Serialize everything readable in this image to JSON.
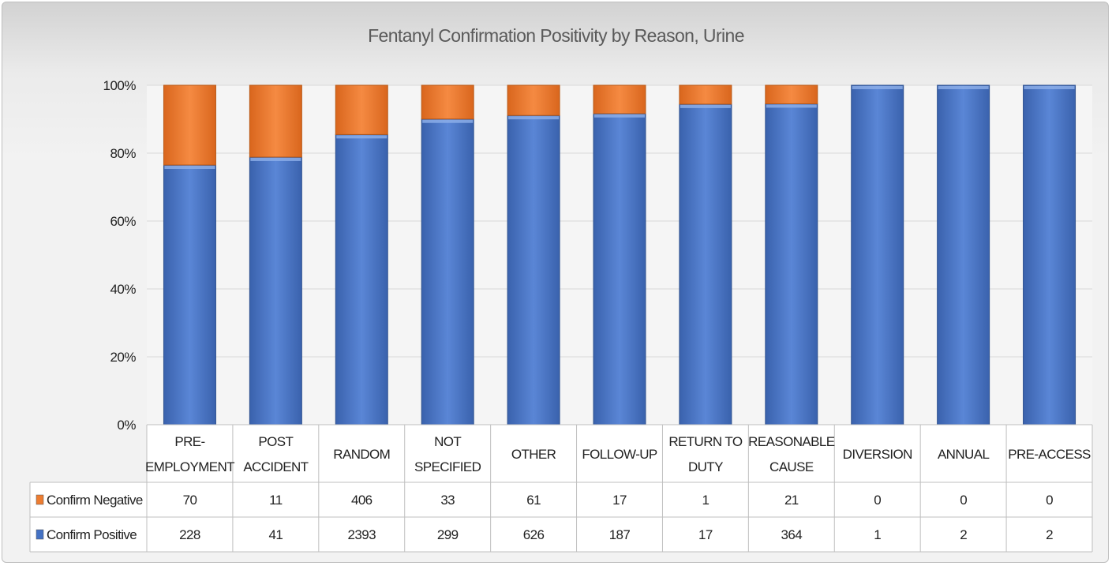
{
  "chart_data": {
    "type": "bar",
    "stacked": "percent",
    "title": "Fentanyl Confirmation Positivity by Reason, Urine",
    "categories": [
      [
        "PRE-",
        "EMPLOYMENT"
      ],
      [
        "POST",
        "ACCIDENT"
      ],
      [
        "RANDOM"
      ],
      [
        "NOT",
        "SPECIFIED"
      ],
      [
        "OTHER"
      ],
      [
        "FOLLOW-UP"
      ],
      [
        "RETURN TO",
        "DUTY"
      ],
      [
        "REASONABLE",
        "CAUSE"
      ],
      [
        "DIVERSION"
      ],
      [
        "ANNUAL"
      ],
      [
        "PRE-ACCESS"
      ]
    ],
    "ylim": [
      0,
      100
    ],
    "yticks": [
      "0%",
      "20%",
      "40%",
      "60%",
      "80%",
      "100%"
    ],
    "grid": true,
    "legend": "data-table",
    "series": [
      {
        "name": "Confirm Negative",
        "color": "#ed7d31",
        "values": [
          70,
          11,
          406,
          33,
          61,
          17,
          1,
          21,
          0,
          0,
          0
        ]
      },
      {
        "name": "Confirm Positive",
        "color": "#4472c4",
        "values": [
          228,
          41,
          2393,
          299,
          626,
          187,
          17,
          364,
          1,
          2,
          2
        ]
      }
    ]
  }
}
